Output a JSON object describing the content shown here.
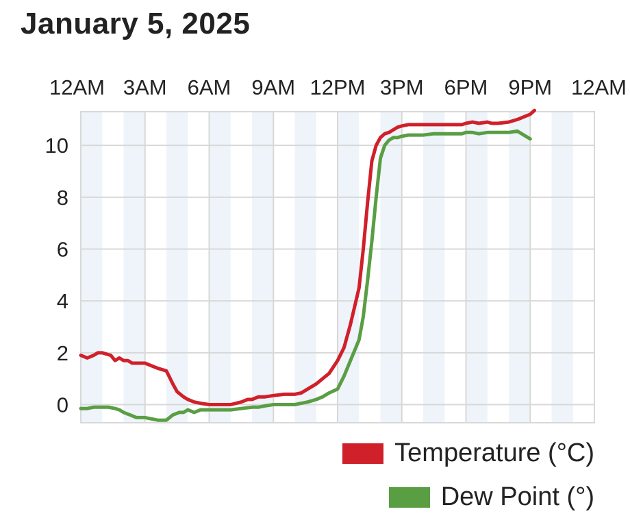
{
  "title": "January 5, 2025",
  "colors": {
    "temperature": "#d0202a",
    "dew_point": "#5a9e44",
    "band": "#eef4fa",
    "grid": "#d8d8d8"
  },
  "chart_data": {
    "type": "line",
    "title": "January 5, 2025",
    "x_ticks": [
      "12AM",
      "3AM",
      "6AM",
      "9AM",
      "12PM",
      "3PM",
      "6PM",
      "9PM",
      "12AM"
    ],
    "x_unit": "hours",
    "xlim": [
      0,
      24
    ],
    "y_ticks": [
      "0",
      "2",
      "4",
      "6",
      "8",
      "10"
    ],
    "ylim": [
      -0.7,
      11.3
    ],
    "grid": true,
    "legend_position": "bottom-right",
    "series": [
      {
        "name": "Temperature (°C)",
        "x": [
          0,
          0.3,
          0.6,
          0.8,
          1.0,
          1.4,
          1.6,
          1.8,
          2.0,
          2.2,
          2.4,
          2.6,
          3.0,
          3.3,
          3.6,
          4.0,
          4.3,
          4.5,
          4.8,
          5.0,
          5.3,
          5.6,
          6.0,
          6.3,
          6.6,
          7.0,
          7.5,
          7.8,
          8.0,
          8.3,
          8.6,
          9.0,
          9.5,
          10.0,
          10.3,
          10.6,
          11.0,
          11.3,
          11.6,
          12.0,
          12.3,
          12.6,
          13.0,
          13.2,
          13.4,
          13.6,
          13.8,
          14.0,
          14.2,
          14.4,
          14.6,
          14.8,
          15.0,
          15.3,
          15.6,
          16.0,
          16.5,
          17.0,
          17.4,
          17.8,
          18.0,
          18.3,
          18.6,
          19.0,
          19.2,
          19.5,
          20.0,
          20.4,
          20.7,
          21.0,
          21.2
        ],
        "values": [
          1.9,
          1.8,
          1.9,
          2.0,
          2.0,
          1.9,
          1.7,
          1.8,
          1.7,
          1.7,
          1.6,
          1.6,
          1.6,
          1.5,
          1.4,
          1.3,
          0.8,
          0.5,
          0.3,
          0.2,
          0.1,
          0.05,
          0.0,
          0.0,
          0.0,
          0.0,
          0.1,
          0.2,
          0.2,
          0.3,
          0.3,
          0.35,
          0.4,
          0.4,
          0.45,
          0.6,
          0.8,
          1.0,
          1.2,
          1.7,
          2.2,
          3.1,
          4.5,
          6.0,
          7.8,
          9.4,
          10.0,
          10.3,
          10.45,
          10.5,
          10.6,
          10.7,
          10.75,
          10.8,
          10.8,
          10.8,
          10.8,
          10.8,
          10.8,
          10.8,
          10.85,
          10.9,
          10.85,
          10.9,
          10.85,
          10.85,
          10.9,
          11.0,
          11.1,
          11.2,
          11.35
        ]
      },
      {
        "name": "Dew Point (°)",
        "x": [
          0,
          0.3,
          0.6,
          0.8,
          1.0,
          1.3,
          1.6,
          1.8,
          2.0,
          2.3,
          2.6,
          2.8,
          3.0,
          3.3,
          3.6,
          3.8,
          4.0,
          4.3,
          4.6,
          4.8,
          5.0,
          5.3,
          5.6,
          6.0,
          6.3,
          6.6,
          7.0,
          7.5,
          8.0,
          8.3,
          8.6,
          9.0,
          9.5,
          10.0,
          10.3,
          10.6,
          11.0,
          11.3,
          11.6,
          12.0,
          12.3,
          12.6,
          13.0,
          13.2,
          13.4,
          13.6,
          13.8,
          14.0,
          14.2,
          14.4,
          14.6,
          14.8,
          15.0,
          15.3,
          15.6,
          16.0,
          16.5,
          17.0,
          17.4,
          17.8,
          18.0,
          18.3,
          18.6,
          19.0,
          19.2,
          19.5,
          20.0,
          20.4,
          20.7,
          21.0
        ],
        "values": [
          -0.15,
          -0.15,
          -0.1,
          -0.1,
          -0.1,
          -0.1,
          -0.15,
          -0.2,
          -0.3,
          -0.4,
          -0.5,
          -0.5,
          -0.5,
          -0.55,
          -0.6,
          -0.6,
          -0.6,
          -0.4,
          -0.3,
          -0.3,
          -0.2,
          -0.3,
          -0.2,
          -0.2,
          -0.2,
          -0.2,
          -0.2,
          -0.15,
          -0.1,
          -0.1,
          -0.05,
          0.0,
          0.0,
          0.0,
          0.05,
          0.1,
          0.2,
          0.3,
          0.45,
          0.6,
          1.1,
          1.7,
          2.5,
          3.4,
          4.8,
          6.3,
          8.0,
          9.5,
          10.0,
          10.2,
          10.3,
          10.3,
          10.35,
          10.4,
          10.4,
          10.4,
          10.45,
          10.45,
          10.45,
          10.45,
          10.5,
          10.5,
          10.45,
          10.5,
          10.5,
          10.5,
          10.5,
          10.55,
          10.4,
          10.25
        ]
      }
    ]
  }
}
